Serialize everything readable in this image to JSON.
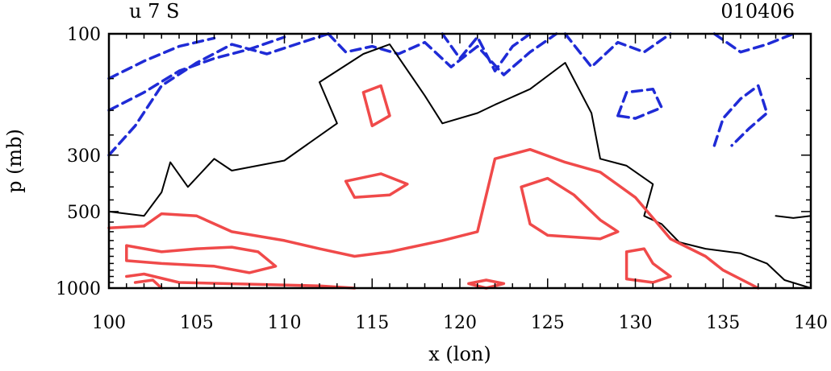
{
  "chart_data": {
    "type": "contour",
    "title_left": "u 7 S",
    "title_right": "010406",
    "xlabel": "x (lon)",
    "ylabel": "p (mb)",
    "xlim": [
      100,
      140
    ],
    "ylim": [
      100,
      1000
    ],
    "y_scale": "log",
    "x_ticks": [
      100,
      105,
      110,
      115,
      120,
      125,
      130,
      135,
      140
    ],
    "y_ticks": [
      100,
      300,
      500,
      1000
    ],
    "colors": {
      "negative": "#1f2bd6",
      "zero": "#000000",
      "positive": "#f04a4a"
    },
    "series": [
      {
        "name": "negative-1",
        "style": "dashed",
        "color": "negative",
        "points": [
          [
            100,
            300
          ],
          [
            101.5,
            230
          ],
          [
            103,
            160
          ],
          [
            105,
            130
          ],
          [
            107,
            110
          ],
          [
            109,
            120
          ],
          [
            111,
            108
          ],
          [
            112.5,
            100
          ]
        ]
      },
      {
        "name": "negative-2",
        "style": "dashed",
        "color": "negative",
        "points": [
          [
            100,
            200
          ],
          [
            102,
            170
          ],
          [
            104,
            140
          ],
          [
            106,
            125
          ],
          [
            108,
            115
          ],
          [
            110,
            103
          ]
        ]
      },
      {
        "name": "negative-3",
        "style": "dashed",
        "color": "negative",
        "points": [
          [
            100,
            150
          ],
          [
            102,
            128
          ],
          [
            104,
            112
          ],
          [
            106,
            104
          ]
        ]
      },
      {
        "name": "negative-4",
        "style": "dashed",
        "color": "negative",
        "points": [
          [
            112.5,
            100
          ],
          [
            113.5,
            118
          ],
          [
            115,
            112
          ],
          [
            116.5,
            120
          ],
          [
            118,
            108
          ],
          [
            119.5,
            135
          ],
          [
            121,
            112
          ],
          [
            122.5,
            145
          ],
          [
            124,
            118
          ],
          [
            125.5,
            100
          ]
        ]
      },
      {
        "name": "negative-5",
        "style": "dashed",
        "color": "negative",
        "points": [
          [
            119,
            100
          ],
          [
            120,
            125
          ],
          [
            121,
            103
          ],
          [
            122,
            140
          ],
          [
            123,
            112
          ],
          [
            124,
            100
          ]
        ]
      },
      {
        "name": "negative-6",
        "style": "dashed",
        "color": "negative",
        "points": [
          [
            126,
            100
          ],
          [
            127.5,
            135
          ],
          [
            129,
            108
          ],
          [
            130.5,
            118
          ],
          [
            132,
            100
          ]
        ]
      },
      {
        "name": "negative-7",
        "style": "dashed",
        "color": "negative",
        "points": [
          [
            134.5,
            100
          ],
          [
            136,
            118
          ],
          [
            137.5,
            110
          ],
          [
            139,
            100
          ]
        ]
      },
      {
        "name": "negative-8",
        "style": "dashed",
        "color": "negative",
        "points": [
          [
            134.5,
            275
          ],
          [
            135,
            215
          ],
          [
            136,
            180
          ],
          [
            137,
            160
          ],
          [
            137.5,
            205
          ],
          [
            136.5,
            235
          ],
          [
            135.5,
            275
          ]
        ]
      },
      {
        "name": "negative-9",
        "style": "dashed",
        "color": "negative",
        "points": [
          [
            129,
            210
          ],
          [
            129.5,
            170
          ],
          [
            131,
            165
          ],
          [
            131.5,
            195
          ],
          [
            130,
            215
          ],
          [
            129,
            210
          ]
        ]
      },
      {
        "name": "zero-1",
        "style": "solid",
        "color": "zero",
        "points": [
          [
            100,
            500
          ],
          [
            102,
            520
          ],
          [
            103,
            420
          ],
          [
            103.5,
            320
          ],
          [
            104.5,
            400
          ],
          [
            106,
            310
          ],
          [
            107,
            345
          ],
          [
            110,
            315
          ],
          [
            113,
            225
          ],
          [
            112,
            155
          ],
          [
            114.5,
            120
          ],
          [
            116,
            110
          ],
          [
            118,
            175
          ],
          [
            119,
            225
          ],
          [
            121,
            205
          ],
          [
            122,
            190
          ],
          [
            124,
            165
          ],
          [
            126,
            130
          ],
          [
            127.5,
            205
          ],
          [
            128,
            310
          ],
          [
            129.5,
            330
          ],
          [
            131,
            390
          ],
          [
            130.5,
            520
          ],
          [
            131.5,
            560
          ],
          [
            132.5,
            660
          ],
          [
            134,
            700
          ],
          [
            136,
            730
          ],
          [
            137.5,
            800
          ],
          [
            138.5,
            930
          ],
          [
            140,
            1000
          ]
        ]
      },
      {
        "name": "zero-2",
        "style": "solid",
        "color": "zero",
        "points": [
          [
            138,
            520
          ],
          [
            139,
            530
          ],
          [
            140,
            520
          ]
        ]
      },
      {
        "name": "positive-1",
        "style": "solid",
        "color": "positive",
        "points": [
          [
            100,
            580
          ],
          [
            102,
            570
          ],
          [
            103,
            510
          ],
          [
            105,
            520
          ],
          [
            107,
            600
          ],
          [
            110,
            650
          ],
          [
            112,
            700
          ],
          [
            114,
            750
          ],
          [
            116,
            720
          ],
          [
            119,
            650
          ],
          [
            121,
            600
          ],
          [
            122,
            310
          ],
          [
            124,
            285
          ],
          [
            126,
            320
          ],
          [
            128,
            350
          ],
          [
            130,
            440
          ],
          [
            131,
            530
          ],
          [
            132,
            640
          ],
          [
            134,
            750
          ],
          [
            135,
            850
          ],
          [
            137,
            1000
          ]
        ]
      },
      {
        "name": "positive-2",
        "style": "solid",
        "color": "positive",
        "points": [
          [
            101,
            680
          ],
          [
            103,
            720
          ],
          [
            105,
            700
          ],
          [
            107,
            690
          ],
          [
            108.5,
            720
          ],
          [
            109.5,
            820
          ],
          [
            108,
            870
          ],
          [
            106,
            820
          ],
          [
            103,
            800
          ],
          [
            101,
            780
          ],
          [
            101,
            680
          ]
        ]
      },
      {
        "name": "positive-3",
        "style": "solid",
        "color": "positive",
        "points": [
          [
            101,
            900
          ],
          [
            102,
            880
          ],
          [
            104,
            950
          ],
          [
            112,
            980
          ],
          [
            114,
            1000
          ]
        ]
      },
      {
        "name": "positive-4",
        "style": "solid",
        "color": "positive",
        "points": [
          [
            101.5,
            950
          ],
          [
            102.5,
            930
          ],
          [
            103,
            1000
          ]
        ]
      },
      {
        "name": "positive-5",
        "style": "solid",
        "color": "positive",
        "points": [
          [
            114.5,
            170
          ],
          [
            115.5,
            160
          ],
          [
            116,
            210
          ],
          [
            115,
            230
          ],
          [
            114.5,
            170
          ]
        ]
      },
      {
        "name": "positive-6",
        "style": "solid",
        "color": "positive",
        "points": [
          [
            113.5,
            380
          ],
          [
            115.5,
            355
          ],
          [
            117,
            390
          ],
          [
            116,
            430
          ],
          [
            114,
            440
          ],
          [
            113.5,
            380
          ]
        ]
      },
      {
        "name": "positive-7",
        "style": "solid",
        "color": "positive",
        "points": [
          [
            123.5,
            400
          ],
          [
            125,
            370
          ],
          [
            126.5,
            430
          ],
          [
            128,
            540
          ],
          [
            129,
            600
          ],
          [
            128,
            640
          ],
          [
            125,
            620
          ],
          [
            124,
            560
          ],
          [
            123.5,
            400
          ]
        ]
      },
      {
        "name": "positive-8",
        "style": "solid",
        "color": "positive",
        "points": [
          [
            129.5,
            720
          ],
          [
            130.5,
            700
          ],
          [
            131,
            800
          ],
          [
            132,
            900
          ],
          [
            131,
            950
          ],
          [
            129.5,
            920
          ],
          [
            129.5,
            720
          ]
        ]
      },
      {
        "name": "positive-9",
        "style": "solid",
        "color": "positive",
        "points": [
          [
            120.5,
            960
          ],
          [
            121.5,
            930
          ],
          [
            122.5,
            960
          ],
          [
            121.5,
            1000
          ],
          [
            120.5,
            960
          ]
        ]
      }
    ]
  }
}
